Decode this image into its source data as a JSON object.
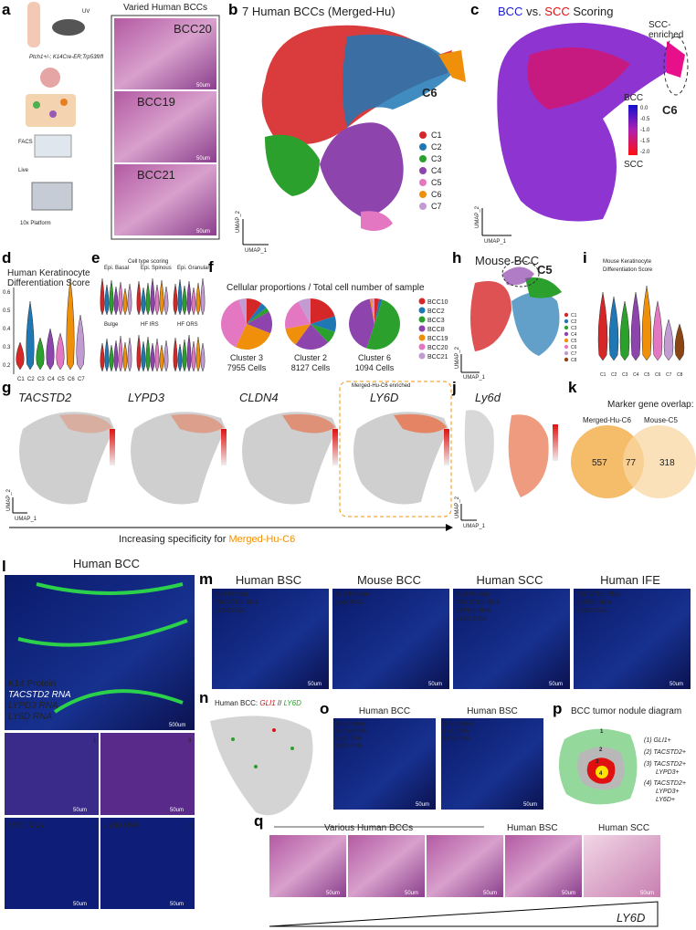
{
  "a": {
    "label": "a",
    "uv": "UV",
    "genotype": "Ptch1+/-; K14Cre-ER;Trp53fl/fl",
    "steps": [
      "FACS",
      "Live",
      "10x Platform"
    ],
    "images_title": "Varied Human BCCs",
    "images": [
      {
        "name": "BCC20",
        "scale": "50um"
      },
      {
        "name": "BCC19",
        "scale": "50um"
      },
      {
        "name": "BCC21",
        "scale": "50um"
      }
    ]
  },
  "b": {
    "label": "b",
    "title": "7 Human BCCs (Merged-Hu)",
    "legend": [
      {
        "name": "C1",
        "color": "#d62728"
      },
      {
        "name": "C2",
        "color": "#1f77b4"
      },
      {
        "name": "C3",
        "color": "#2ca02c"
      },
      {
        "name": "C4",
        "color": "#8e44ad"
      },
      {
        "name": "C5",
        "color": "#e377c2"
      },
      {
        "name": "C6",
        "color": "#f0900a"
      },
      {
        "name": "C7",
        "color": "#c39bd3"
      }
    ],
    "callout": "C6",
    "y_axis": "UMAP_2",
    "x_axis": "UMAP_1"
  },
  "c": {
    "label": "c",
    "title": [
      "BCC",
      " vs. ",
      "SCC",
      " Scoring"
    ],
    "callout": [
      "SCC-",
      "enriched"
    ],
    "cluster": "C6",
    "colorbar": {
      "top": "BCC",
      "ticks": [
        "0.0",
        "-0.5",
        "-1.0",
        "-1.5",
        "-2.0"
      ],
      "bottom": "SCC"
    },
    "y_axis": "UMAP_2",
    "x_axis": "UMAP_1"
  },
  "d": {
    "label": "d",
    "title": [
      "Human Keratinocyte",
      "Differentiation Score"
    ],
    "yticks": [
      "0.6",
      "0.5",
      "0.4",
      "0.3",
      "0.2"
    ],
    "categories": [
      "C1",
      "C2",
      "C3",
      "C4",
      "C5",
      "C6",
      "C7"
    ]
  },
  "e": {
    "label": "e",
    "title": "Cell type scoring",
    "panels": [
      "Epi. Basal",
      "Epi. Spinous",
      "Epi. Granular",
      "Bulge",
      "HF IRS",
      "HF ORS"
    ]
  },
  "f": {
    "label": "f",
    "title": "Cellular proportions / Total cell number of sample",
    "legend": [
      {
        "name": "BCC10",
        "color": "#d62728"
      },
      {
        "name": "BCC2",
        "color": "#1f77b4"
      },
      {
        "name": "BCC3",
        "color": "#2ca02c"
      },
      {
        "name": "BCC8",
        "color": "#8e44ad"
      },
      {
        "name": "BCC19",
        "color": "#f0900a"
      },
      {
        "name": "BCC20",
        "color": "#e377c2"
      },
      {
        "name": "BCC21",
        "color": "#c39bd3"
      }
    ],
    "pies": [
      {
        "cluster": "Cluster 3",
        "cells": "7955 Cells",
        "values": [
          10,
          4,
          3,
          14,
          26,
          38,
          5
        ]
      },
      {
        "cluster": "Cluster 2",
        "cells": "8127 Cells",
        "values": [
          20,
          10,
          8,
          22,
          12,
          20,
          8
        ]
      },
      {
        "cluster": "Cluster 6",
        "cells": "1094 Cells",
        "values": [
          3,
          2,
          50,
          42,
          1,
          1,
          1
        ]
      }
    ]
  },
  "h": {
    "label": "h",
    "title": "Mouse BCC",
    "callout": "C5",
    "legend": [
      "C1",
      "C2",
      "C3",
      "C4",
      "C5",
      "C6",
      "C7",
      "C8"
    ],
    "y_axis": "UMAP_2",
    "x_axis": "UMAP_1"
  },
  "i": {
    "label": "i",
    "title": [
      "Mouse Keratinocyte",
      "Differentiation Score"
    ]
  },
  "g": {
    "label": "g",
    "genes": [
      "TACSTD2",
      "LYPD3",
      "CLDN4",
      "LY6D"
    ],
    "box_title": "Merged-Hu-C6 enriched",
    "arrow_text": "Increasing specificity for ",
    "arrow_highlight": "Merged-Hu-C6",
    "y_axis": "UMAP_2",
    "x_axis": "UMAP_1"
  },
  "j": {
    "label": "j",
    "gene": "Ly6d",
    "y_axis": "UMAP_2",
    "x_axis": "UMAP_1"
  },
  "k": {
    "label": "k",
    "title": "Marker gene overlap:",
    "sets": [
      "Merged-Hu-C6",
      "Mouse-C5"
    ],
    "counts": [
      "557",
      "77",
      "318"
    ]
  },
  "l": {
    "label": "l",
    "title": "Human BCC",
    "stains": [
      "K14 Protein",
      "TACSTD2 RNA",
      "LYPD3 RNA",
      "LY6D RNA"
    ],
    "scale_big": "500um",
    "insets": [
      "1",
      "2",
      "3"
    ],
    "scale": "50um",
    "rna_label": "LY6D RNA"
  },
  "m": {
    "label": "m",
    "panels": [
      {
        "title": "Human BSC",
        "stains": [
          "K14 Protein",
          "TACSTD2 RNA",
          "LY6D RNA"
        ]
      },
      {
        "title": "Mouse BCC",
        "stains": [
          "K14 Protein",
          "Ly6d RNA"
        ]
      },
      {
        "title": "Human SCC",
        "stains": [
          "K14 Protein",
          "TACSTD2 RNA",
          "LYPD3 RNA",
          "LY6D RNA"
        ]
      },
      {
        "title": "Human IFE",
        "stains": [
          "TACSTD2 RNA",
          "LYPD3 RNA",
          "LY6D RNA"
        ]
      }
    ],
    "scale": "50um"
  },
  "n": {
    "label": "n",
    "title": "Human BCC: ",
    "gene1": "GLI1",
    "sep": " // ",
    "gene2": "LY6D"
  },
  "o": {
    "label": "o",
    "panels": [
      {
        "title": "Human BCC",
        "stains": [
          "K14 Protein",
          "LYPD3 RNA",
          "GLI1 RNA",
          "LY6D RNA"
        ]
      },
      {
        "title": "Human BSC",
        "stains": [
          "K14 Protein",
          "GLI1 RNA",
          "LY6D RNA"
        ]
      }
    ],
    "scale": "50um"
  },
  "p": {
    "label": "p",
    "title": "BCC tumor nodule diagram",
    "rings": [
      "1",
      "2",
      "3",
      "4"
    ],
    "items": [
      "(1) GLI1+",
      "(2) TACSTD2+",
      "(3) TACSTD2+",
      "LYPD3+",
      "(4) TACSTD2+",
      "LYPD3+",
      "LY6D+"
    ]
  },
  "q": {
    "label": "q",
    "groups": [
      "Various Human BCCs",
      "Human BSC",
      "Human SCC"
    ],
    "scale": "50um",
    "gradient": "LY6D"
  }
}
